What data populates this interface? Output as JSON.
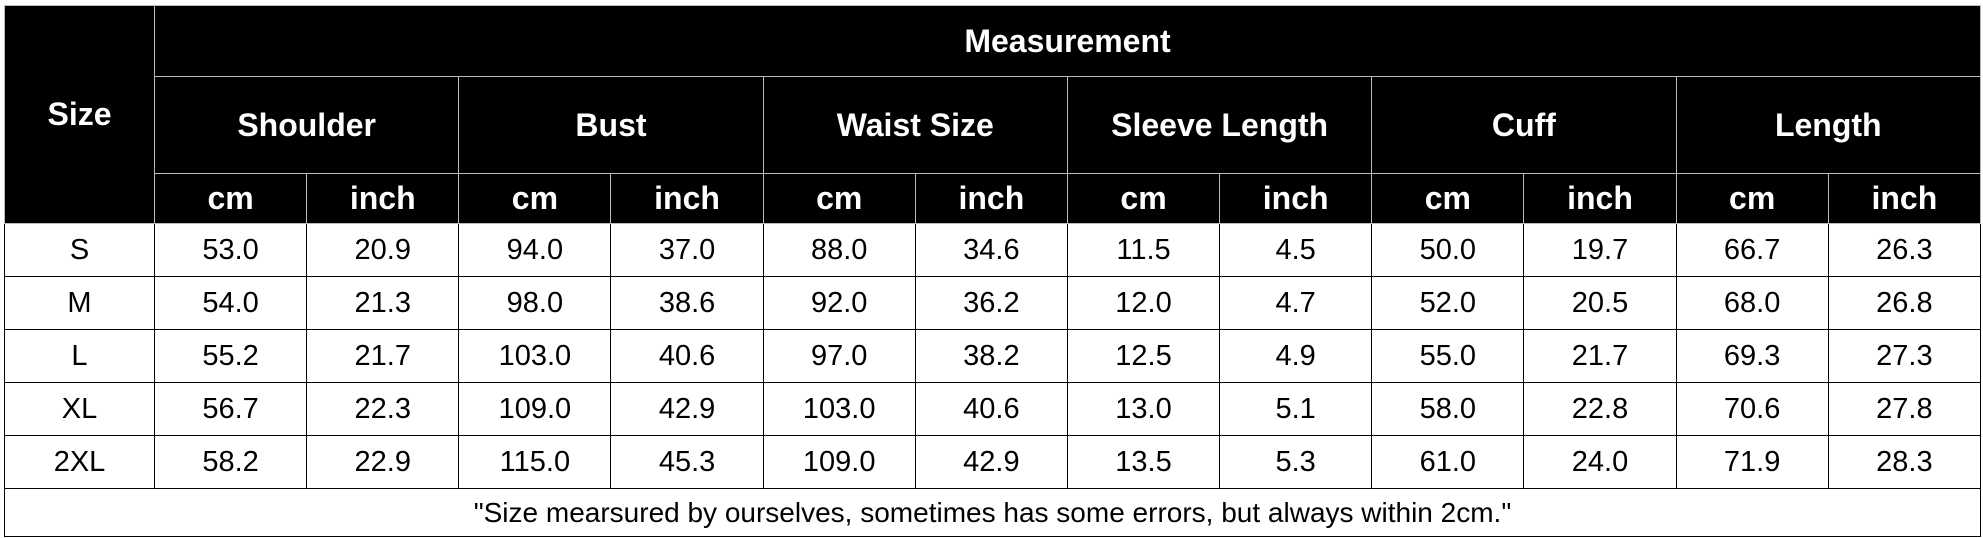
{
  "table": {
    "size_header": "Size",
    "measurement_header": "Measurement",
    "groups": [
      "Shoulder",
      "Bust",
      "Waist Size",
      "Sleeve Length",
      "Cuff",
      "Length"
    ],
    "units": [
      "cm",
      "inch",
      "cm",
      "inch",
      "cm",
      "inch",
      "cm",
      "inch",
      "cm",
      "inch",
      "cm",
      "inch"
    ],
    "rows": [
      [
        "S",
        "53.0",
        "20.9",
        "94.0",
        "37.0",
        "88.0",
        "34.6",
        "11.5",
        "4.5",
        "50.0",
        "19.7",
        "66.7",
        "26.3"
      ],
      [
        "M",
        "54.0",
        "21.3",
        "98.0",
        "38.6",
        "92.0",
        "36.2",
        "12.0",
        "4.7",
        "52.0",
        "20.5",
        "68.0",
        "26.8"
      ],
      [
        "L",
        "55.2",
        "21.7",
        "103.0",
        "40.6",
        "97.0",
        "38.2",
        "12.5",
        "4.9",
        "55.0",
        "21.7",
        "69.3",
        "27.3"
      ],
      [
        "XL",
        "56.7",
        "22.3",
        "109.0",
        "42.9",
        "103.0",
        "40.6",
        "13.0",
        "5.1",
        "58.0",
        "22.8",
        "70.6",
        "27.8"
      ],
      [
        "2XL",
        "58.2",
        "22.9",
        "115.0",
        "45.3",
        "109.0",
        "42.9",
        "13.5",
        "5.3",
        "61.0",
        "24.0",
        "71.9",
        "28.3"
      ]
    ],
    "note": "\"Size mearsured by ourselves, sometimes has some errors, but always within 2cm.\""
  }
}
